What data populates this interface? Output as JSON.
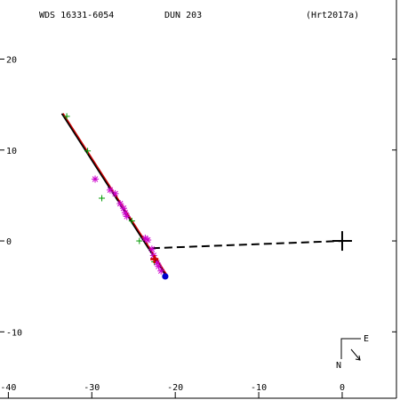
{
  "header": {
    "left": "WDS 16331-6054",
    "center": "DUN 203",
    "right": "(Hrt2017a)"
  },
  "compass": {
    "east_label": "E",
    "north_label": "N"
  },
  "chart_data": {
    "type": "scatter",
    "title": "",
    "xlabel": "",
    "ylabel": "",
    "x_axis": {
      "range": [
        -41,
        6.5
      ],
      "ticks": [
        -40,
        -30,
        -20,
        -10,
        0
      ],
      "tick_labels": [
        "-40",
        "-30",
        "-20",
        "-10",
        "0"
      ]
    },
    "y_axis": {
      "range": [
        -17.3,
        26.5
      ],
      "ticks": [
        20,
        10,
        0,
        -10
      ],
      "tick_labels": [
        "20",
        "10",
        "0",
        "-10"
      ]
    },
    "grid": false,
    "colors": {
      "orbit": "#000000",
      "orbit_highlight": "#cc0000",
      "plus": "#009900",
      "star": "#cc00cc",
      "current": "#0000cc",
      "last": "#cc0000",
      "primary": "#000000"
    },
    "orbit_line": {
      "x": [
        -33.6,
        -21.2
      ],
      "y": [
        14.0,
        -3.7
      ]
    },
    "connector_line": {
      "x": [
        -22.8,
        0
      ],
      "y": [
        -0.8,
        0
      ]
    },
    "series": [
      {
        "marker": "plus",
        "x": [
          -33.0,
          -30.5,
          -28.8,
          -25.2,
          -24.3,
          -22.5
        ],
        "y": [
          13.7,
          9.9,
          4.7,
          2.2,
          0.0,
          -2.3
        ]
      },
      {
        "marker": "asterisk",
        "x": [
          -29.6,
          -27.8,
          -27.2,
          -26.6,
          -26.2,
          -26.0,
          -25.8,
          -23.6,
          -23.3,
          -22.8,
          -22.6,
          -22.2,
          -22.0,
          -21.7
        ],
        "y": [
          6.8,
          5.6,
          5.2,
          4.1,
          3.6,
          3.1,
          2.7,
          0.3,
          0.1,
          -0.9,
          -1.6,
          -2.4,
          -2.8,
          -3.3
        ]
      },
      {
        "marker": "last-plus",
        "x": [
          -22.5
        ],
        "y": [
          -2.0
        ]
      },
      {
        "marker": "dot",
        "x": [
          -21.2
        ],
        "y": [
          -3.9
        ]
      }
    ],
    "primary_star": {
      "x": 0,
      "y": 0
    }
  }
}
